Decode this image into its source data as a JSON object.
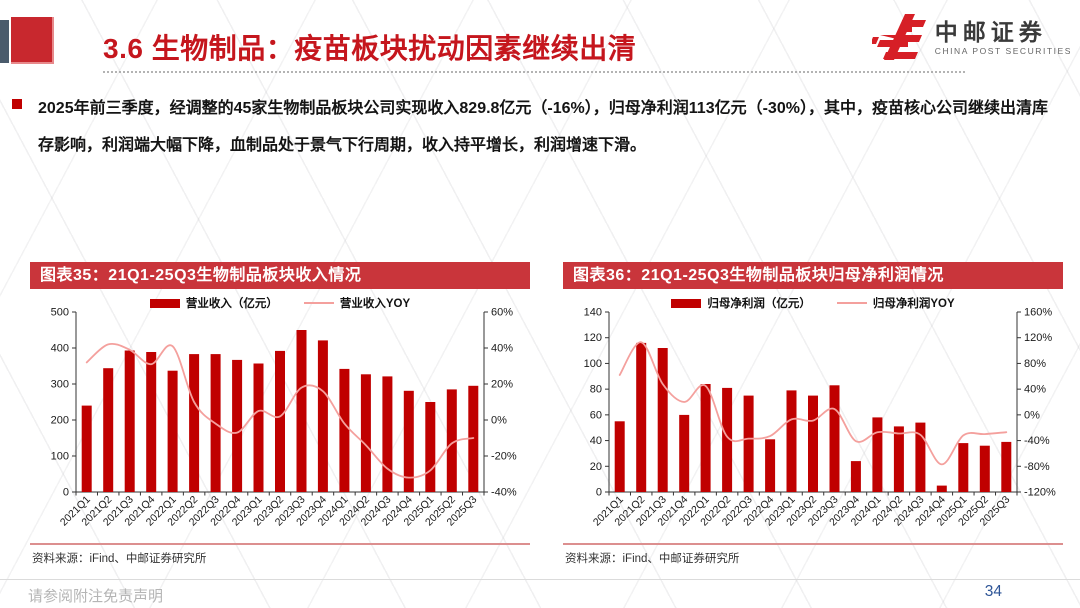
{
  "header": {
    "title": "3.6 生物制品：疫苗板块扰动因素继续出清",
    "logo": {
      "cn": "中邮证券",
      "en": "CHINA POST SECURITIES"
    }
  },
  "summary": {
    "text": "2025年前三季度，经调整的45家生物制品板块公司实现收入829.8亿元（-16%），归母净利润113亿元（-30%），其中，疫苗核心公司继续出清库存影响，利润端大幅下降，血制品处于景气下行周期，收入持平增长，利润增速下滑。"
  },
  "colors": {
    "title_red": "#C5161D",
    "banner_red": "#C9353B",
    "bar_red": "#C00000",
    "line_pink": "#F4A09D",
    "axis_ink": "#333333",
    "page_number_blue": "#2E5597"
  },
  "chart_data": [
    {
      "type": "bar",
      "title": "图表35：21Q1-25Q3生物制品板块收入情况",
      "categories": [
        "2021Q1",
        "2021Q2",
        "2021Q3",
        "2021Q4",
        "2022Q1",
        "2022Q2",
        "2022Q3",
        "2022Q4",
        "2023Q1",
        "2023Q2",
        "2023Q3",
        "2023Q4",
        "2024Q1",
        "2024Q2",
        "2024Q3",
        "2024Q4",
        "2025Q1",
        "2025Q2",
        "2025Q3"
      ],
      "series": [
        {
          "name": "营业收入（亿元）",
          "type": "bar",
          "axis": "left",
          "values": [
            240,
            344,
            393,
            389,
            337,
            383,
            383,
            367,
            357,
            392,
            450,
            421,
            342,
            327,
            321,
            281,
            250,
            285,
            295
          ]
        },
        {
          "name": "营业收入YOY",
          "type": "line",
          "axis": "right",
          "values": [
            32,
            42,
            39,
            31,
            41,
            10,
            -2,
            -7,
            5,
            2,
            18,
            16,
            -2,
            -14,
            -27,
            -32,
            -28,
            -13,
            -10
          ]
        }
      ],
      "left_axis": {
        "min": 0,
        "max": 500,
        "step": 100,
        "suffix": ""
      },
      "right_axis": {
        "min": -40,
        "max": 60,
        "step": 20,
        "suffix": "%"
      },
      "grid": "off",
      "legend_position": "top",
      "source": "资料来源：iFind、中邮证券研究所"
    },
    {
      "type": "bar",
      "title": "图表36：21Q1-25Q3生物制品板块归母净利润情况",
      "categories": [
        "2021Q1",
        "2021Q2",
        "2021Q3",
        "2021Q4",
        "2022Q1",
        "2022Q2",
        "2022Q3",
        "2022Q4",
        "2023Q1",
        "2023Q2",
        "2023Q3",
        "2023Q4",
        "2024Q1",
        "2024Q2",
        "2024Q3",
        "2024Q4",
        "2025Q1",
        "2025Q2",
        "2025Q3"
      ],
      "series": [
        {
          "name": "归母净利润（亿元）",
          "type": "bar",
          "axis": "left",
          "values": [
            55,
            116,
            112,
            60,
            84,
            81,
            75,
            41,
            79,
            75,
            83,
            24,
            58,
            51,
            54,
            5,
            38,
            36,
            39
          ]
        },
        {
          "name": "归母净利润YOY",
          "type": "line",
          "axis": "right",
          "values": [
            62,
            113,
            48,
            20,
            45,
            -34,
            -37,
            -33,
            -7,
            -9,
            9,
            -41,
            -27,
            -29,
            -31,
            -77,
            -32,
            -30,
            -27
          ]
        }
      ],
      "left_axis": {
        "min": 0,
        "max": 140,
        "step": 20,
        "suffix": ""
      },
      "right_axis": {
        "min": -120,
        "max": 160,
        "step": 40,
        "suffix": "%"
      },
      "grid": "off",
      "legend_position": "top",
      "source": "资料来源：iFind、中邮证券研究所"
    }
  ],
  "footer": {
    "disclaimer": "请参阅附注免责声明",
    "page_number": "34"
  }
}
